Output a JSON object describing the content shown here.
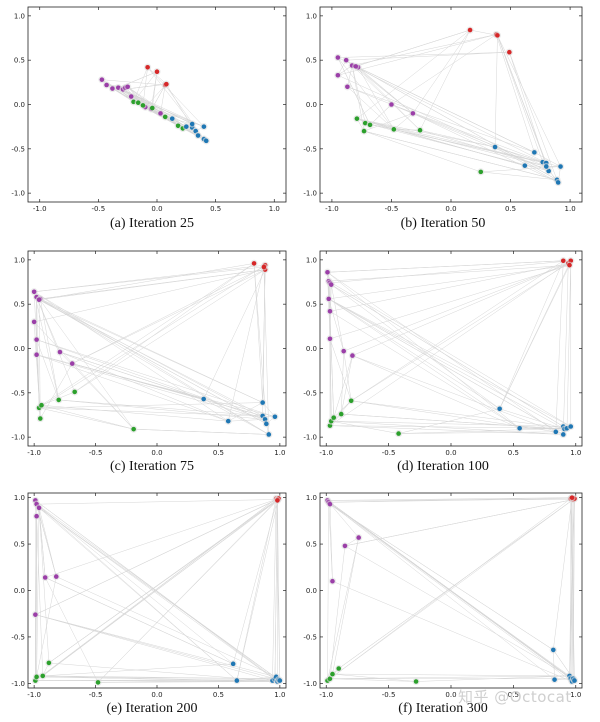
{
  "figure": {
    "watermark": "知乎 @Octocat"
  },
  "chart_data": [
    {
      "type": "scatter",
      "title": "(a) Iteration 25",
      "xlim": [
        -1.1,
        1.1
      ],
      "ylim": [
        -1.1,
        1.1
      ],
      "xticks": [
        -1.0,
        -0.5,
        0.0,
        0.5,
        1.0
      ],
      "yticks": [
        -1.0,
        -0.5,
        0.0,
        0.5,
        1.0
      ],
      "tick_labels": [
        "-1.0",
        "-0.5",
        "0.0",
        "0.5",
        "1.0"
      ],
      "series": [
        {
          "name": "red",
          "color": "#d62728",
          "points": [
            [
              -0.08,
              0.42
            ],
            [
              0.0,
              0.37
            ],
            [
              0.07,
              0.22
            ],
            [
              0.08,
              0.23
            ]
          ]
        },
        {
          "name": "purple",
          "color": "#9b3fa8",
          "points": [
            [
              -0.47,
              0.28
            ],
            [
              -0.43,
              0.22
            ],
            [
              -0.38,
              0.18
            ],
            [
              -0.33,
              0.19
            ],
            [
              -0.29,
              0.17
            ],
            [
              -0.27,
              0.19
            ],
            [
              -0.25,
              0.2
            ],
            [
              -0.22,
              0.09
            ],
            [
              -0.1,
              -0.03
            ],
            [
              -0.05,
              -0.05
            ],
            [
              0.03,
              -0.1
            ]
          ]
        },
        {
          "name": "green",
          "color": "#2ca02c",
          "points": [
            [
              -0.2,
              0.03
            ],
            [
              -0.16,
              0.02
            ],
            [
              -0.12,
              -0.01
            ],
            [
              -0.04,
              -0.04
            ],
            [
              0.07,
              -0.14
            ],
            [
              0.18,
              -0.24
            ],
            [
              0.22,
              -0.27
            ]
          ]
        },
        {
          "name": "blue",
          "color": "#1f77b4",
          "points": [
            [
              0.13,
              -0.16
            ],
            [
              0.25,
              -0.25
            ],
            [
              0.3,
              -0.26
            ],
            [
              0.33,
              -0.3
            ],
            [
              0.35,
              -0.35
            ],
            [
              0.4,
              -0.39
            ],
            [
              0.42,
              -0.41
            ],
            [
              0.3,
              -0.22
            ],
            [
              0.4,
              -0.25
            ]
          ]
        }
      ]
    },
    {
      "type": "scatter",
      "title": "(b) Iteration 50",
      "xlim": [
        -1.1,
        1.1
      ],
      "ylim": [
        -1.1,
        1.1
      ],
      "xticks": [
        -1.0,
        -0.5,
        0.0,
        0.5,
        1.0
      ],
      "yticks": [
        -1.0,
        -0.5,
        0.0,
        0.5,
        1.0
      ],
      "tick_labels": [
        "-1.0",
        "-0.5",
        "0.0",
        "0.5",
        "1.0"
      ],
      "series": [
        {
          "name": "red",
          "color": "#d62728",
          "points": [
            [
              0.16,
              0.84
            ],
            [
              0.38,
              0.79
            ],
            [
              0.39,
              0.78
            ],
            [
              0.49,
              0.59
            ]
          ]
        },
        {
          "name": "purple",
          "color": "#9b3fa8",
          "points": [
            [
              -0.95,
              0.53
            ],
            [
              -0.88,
              0.5
            ],
            [
              -0.83,
              0.44
            ],
            [
              -0.78,
              0.42
            ],
            [
              -0.8,
              0.43
            ],
            [
              -0.95,
              0.33
            ],
            [
              -0.87,
              0.2
            ],
            [
              -0.5,
              0.0
            ],
            [
              -0.32,
              -0.1
            ]
          ]
        },
        {
          "name": "green",
          "color": "#2ca02c",
          "points": [
            [
              -0.79,
              -0.16
            ],
            [
              -0.72,
              -0.21
            ],
            [
              -0.68,
              -0.23
            ],
            [
              -0.73,
              -0.3
            ],
            [
              -0.48,
              -0.28
            ],
            [
              -0.26,
              -0.29
            ],
            [
              0.25,
              -0.76
            ]
          ]
        },
        {
          "name": "blue",
          "color": "#1f77b4",
          "points": [
            [
              0.37,
              -0.48
            ],
            [
              0.62,
              -0.69
            ],
            [
              0.7,
              -0.54
            ],
            [
              0.77,
              -0.65
            ],
            [
              0.8,
              -0.66
            ],
            [
              0.82,
              -0.75
            ],
            [
              0.89,
              -0.85
            ],
            [
              0.9,
              -0.88
            ],
            [
              0.92,
              -0.7
            ],
            [
              0.8,
              -0.7
            ]
          ]
        }
      ]
    },
    {
      "type": "scatter",
      "title": "(c) Iteration 75",
      "xlim": [
        -1.05,
        1.05
      ],
      "ylim": [
        -1.1,
        1.1
      ],
      "xticks": [
        -1.0,
        -0.5,
        0.0,
        0.5,
        1.0
      ],
      "yticks": [
        -1.0,
        -0.5,
        0.0,
        0.5,
        1.0
      ],
      "tick_labels": [
        "-1.0",
        "-0.5",
        "0.0",
        "0.5",
        "1.0"
      ],
      "series": [
        {
          "name": "red",
          "color": "#d62728",
          "points": [
            [
              0.79,
              0.96
            ],
            [
              0.88,
              0.94
            ],
            [
              0.88,
              0.89
            ],
            [
              0.87,
              0.92
            ]
          ]
        },
        {
          "name": "purple",
          "color": "#9b3fa8",
          "points": [
            [
              -1.0,
              0.64
            ],
            [
              -0.98,
              0.58
            ],
            [
              -0.95,
              0.56
            ],
            [
              -0.96,
              0.55
            ],
            [
              -1.0,
              0.3
            ],
            [
              -0.98,
              0.1
            ],
            [
              -0.98,
              -0.07
            ],
            [
              -0.79,
              -0.04
            ],
            [
              -0.69,
              -0.17
            ]
          ]
        },
        {
          "name": "green",
          "color": "#2ca02c",
          "points": [
            [
              -0.96,
              -0.67
            ],
            [
              -0.94,
              -0.64
            ],
            [
              -0.95,
              -0.79
            ],
            [
              -0.8,
              -0.58
            ],
            [
              -0.67,
              -0.49
            ],
            [
              -0.19,
              -0.91
            ]
          ]
        },
        {
          "name": "blue",
          "color": "#1f77b4",
          "points": [
            [
              0.38,
              -0.57
            ],
            [
              0.58,
              -0.82
            ],
            [
              0.86,
              -0.61
            ],
            [
              0.86,
              -0.76
            ],
            [
              0.88,
              -0.8
            ],
            [
              0.89,
              -0.85
            ],
            [
              0.91,
              -0.97
            ],
            [
              0.96,
              -0.77
            ]
          ]
        }
      ]
    },
    {
      "type": "scatter",
      "title": "(d) Iteration 100",
      "xlim": [
        -1.05,
        1.05
      ],
      "ylim": [
        -1.1,
        1.1
      ],
      "xticks": [
        -1.0,
        -0.5,
        0.0,
        0.5,
        1.0
      ],
      "yticks": [
        -1.0,
        -0.5,
        0.0,
        0.5,
        1.0
      ],
      "tick_labels": [
        "-1.0",
        "-0.5",
        "0.0",
        "0.5",
        "1.0"
      ],
      "series": [
        {
          "name": "red",
          "color": "#d62728",
          "points": [
            [
              0.9,
              0.99
            ],
            [
              0.94,
              0.96
            ],
            [
              0.96,
              0.99
            ],
            [
              0.95,
              0.94
            ]
          ]
        },
        {
          "name": "purple",
          "color": "#9b3fa8",
          "points": [
            [
              -0.99,
              0.86
            ],
            [
              -0.98,
              0.76
            ],
            [
              -0.97,
              0.74
            ],
            [
              -0.96,
              0.72
            ],
            [
              -0.98,
              0.56
            ],
            [
              -0.97,
              0.42
            ],
            [
              -0.97,
              0.11
            ],
            [
              -0.86,
              -0.03
            ],
            [
              -0.79,
              -0.08
            ]
          ]
        },
        {
          "name": "green",
          "color": "#2ca02c",
          "points": [
            [
              -0.97,
              -0.87
            ],
            [
              -0.96,
              -0.82
            ],
            [
              -0.94,
              -0.78
            ],
            [
              -0.88,
              -0.74
            ],
            [
              -0.8,
              -0.59
            ],
            [
              -0.42,
              -0.96
            ]
          ]
        },
        {
          "name": "blue",
          "color": "#1f77b4",
          "points": [
            [
              0.39,
              -0.68
            ],
            [
              0.55,
              -0.9
            ],
            [
              0.84,
              -0.94
            ],
            [
              0.9,
              -0.88
            ],
            [
              0.91,
              -0.91
            ],
            [
              0.93,
              -0.9
            ],
            [
              0.96,
              -0.88
            ],
            [
              0.9,
              -0.97
            ]
          ]
        }
      ]
    },
    {
      "type": "scatter",
      "title": "(e) Iteration 200",
      "xlim": [
        -1.05,
        1.05
      ],
      "ylim": [
        -1.05,
        1.05
      ],
      "xticks": [
        -1.0,
        -0.5,
        0.0,
        0.5,
        1.0
      ],
      "yticks": [
        -1.0,
        -0.5,
        0.0,
        0.5,
        1.0
      ],
      "tick_labels": [
        "-1.0",
        "-0.5",
        "0.0",
        "0.5",
        "1.0"
      ],
      "series": [
        {
          "name": "red",
          "color": "#d62728",
          "points": [
            [
              0.97,
              0.99
            ],
            [
              0.98,
              0.98
            ],
            [
              0.99,
              0.99
            ],
            [
              0.98,
              0.97
            ]
          ]
        },
        {
          "name": "purple",
          "color": "#9b3fa8",
          "points": [
            [
              -0.99,
              0.97
            ],
            [
              -0.98,
              0.93
            ],
            [
              -0.96,
              0.89
            ],
            [
              -0.98,
              0.8
            ],
            [
              -0.91,
              0.14
            ],
            [
              -0.82,
              0.15
            ],
            [
              -0.99,
              -0.26
            ]
          ]
        },
        {
          "name": "green",
          "color": "#2ca02c",
          "points": [
            [
              -0.99,
              -0.97
            ],
            [
              -0.98,
              -0.93
            ],
            [
              -0.93,
              -0.92
            ],
            [
              -0.88,
              -0.78
            ],
            [
              -0.48,
              -0.99
            ]
          ]
        },
        {
          "name": "blue",
          "color": "#1f77b4",
          "points": [
            [
              0.62,
              -0.79
            ],
            [
              0.65,
              -0.97
            ],
            [
              0.94,
              -0.97
            ],
            [
              0.96,
              -0.95
            ],
            [
              0.97,
              -0.93
            ],
            [
              0.98,
              -0.98
            ],
            [
              0.99,
              -0.96
            ],
            [
              1.0,
              -0.97
            ]
          ]
        }
      ]
    },
    {
      "type": "scatter",
      "title": "(f) Iteration 300",
      "xlim": [
        -1.05,
        1.05
      ],
      "ylim": [
        -1.05,
        1.05
      ],
      "xticks": [
        -1.0,
        -0.5,
        0.0,
        0.5,
        1.0
      ],
      "yticks": [
        -1.0,
        -0.5,
        0.0,
        0.5,
        1.0
      ],
      "tick_labels": [
        "-1.0",
        "-0.5",
        "0.0",
        "0.5",
        "1.0"
      ],
      "series": [
        {
          "name": "red",
          "color": "#d62728",
          "points": [
            [
              0.96,
              0.99
            ],
            [
              0.98,
              0.98
            ],
            [
              0.99,
              0.99
            ],
            [
              0.97,
              1.0
            ]
          ]
        },
        {
          "name": "purple",
          "color": "#9b3fa8",
          "points": [
            [
              -0.99,
              0.97
            ],
            [
              -0.98,
              0.95
            ],
            [
              -0.97,
              0.93
            ],
            [
              -0.85,
              0.48
            ],
            [
              -0.74,
              0.57
            ],
            [
              -0.95,
              0.1
            ]
          ]
        },
        {
          "name": "green",
          "color": "#2ca02c",
          "points": [
            [
              -0.99,
              -0.97
            ],
            [
              -0.97,
              -0.95
            ],
            [
              -0.95,
              -0.9
            ],
            [
              -0.9,
              -0.84
            ],
            [
              -0.28,
              -0.98
            ]
          ]
        },
        {
          "name": "blue",
          "color": "#1f77b4",
          "points": [
            [
              0.82,
              -0.64
            ],
            [
              0.83,
              -0.96
            ],
            [
              0.95,
              -0.92
            ],
            [
              0.96,
              -0.95
            ],
            [
              0.97,
              -0.98
            ],
            [
              0.98,
              -0.95
            ],
            [
              0.99,
              -0.97
            ]
          ]
        }
      ]
    }
  ]
}
